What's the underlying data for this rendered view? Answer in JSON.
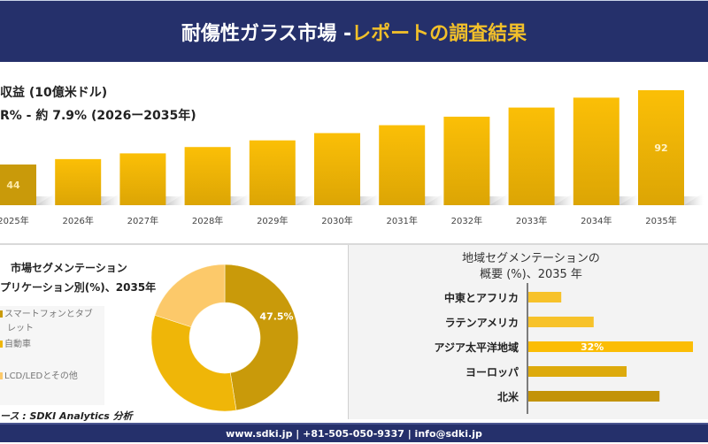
{
  "header": {
    "title_main": "耐傷性ガラス市場 -",
    "title_accent": "レポートの調査結果"
  },
  "chart_data": [
    {
      "type": "bar",
      "title": "収益 (10億米ドル)",
      "subtitle": "R% - 約 7.9% (2026ー2035年)",
      "categories": [
        "2025年",
        "2026年",
        "2027年",
        "2028年",
        "2029年",
        "2030年",
        "2031年",
        "2032年",
        "2033年",
        "2034年",
        "2035年"
      ],
      "values": [
        44,
        47.5,
        51.2,
        55.3,
        59.6,
        64.3,
        69.4,
        74.9,
        80.8,
        87.2,
        92
      ],
      "data_labels": {
        "0": "44",
        "10": "92"
      },
      "ylim": [
        0,
        100
      ],
      "grid": false,
      "colors": {
        "first": "#c99a0a",
        "rest": "#f2b705",
        "gradient_bottom": "#dba605"
      }
    },
    {
      "type": "pie",
      "subtype": "donut",
      "title_line1": "市場セグメンテーション",
      "title_line2": "プリケーション別(%)、2035年",
      "categories": [
        "スマートフォンとタブレット",
        "自動車",
        "LCD/LEDとその他"
      ],
      "legend_lines": [
        [
          "スマートフォンとタブ",
          "レット"
        ],
        [
          "自動車"
        ],
        [
          "LCD/LEDとその他"
        ]
      ],
      "values": [
        47.5,
        32.5,
        20
      ],
      "data_labels": {
        "0": "47.5%"
      },
      "colors": [
        "#c99a0a",
        "#efb608",
        "#fcc96a"
      ],
      "legend": "left"
    },
    {
      "type": "bar",
      "orientation": "horizontal",
      "title_line1": "地域セグメンテーションの",
      "title_line2": "概要 (%)、2035 年",
      "categories": [
        "中東とアフリカ",
        "ラテンアメリカ",
        "アジア太平洋地域",
        "ヨーロッパ",
        "北米"
      ],
      "values": [
        6.4,
        12.7,
        32,
        19.1,
        25.5
      ],
      "data_labels": {
        "2": "32%"
      },
      "xlim": [
        0,
        33
      ],
      "colors": [
        "#f7c22a",
        "#f7c22a",
        "#fbbd05",
        "#ddaa0c",
        "#c39308"
      ]
    }
  ],
  "source": "ース : SDKI Analytics 分析",
  "footer": {
    "contact": "www.sdki.jp | +81-505-050-9337 | info@sdki.jp"
  }
}
